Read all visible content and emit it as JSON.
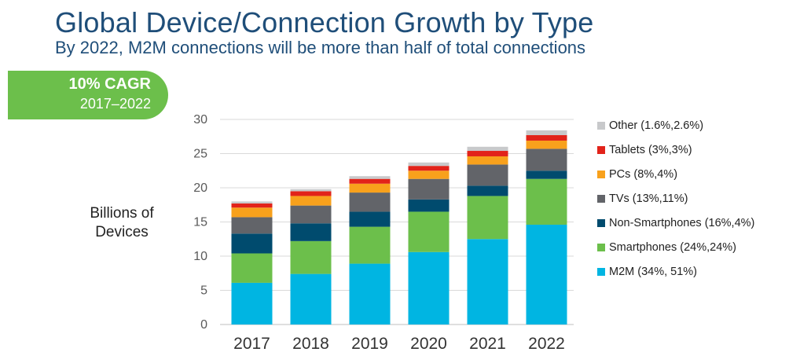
{
  "header": {
    "title": "Global Device/Connection Growth by Type",
    "subtitle": "By 2022, M2M connections will be more than half of total connections"
  },
  "badge": {
    "line1": "10% CAGR",
    "line2": "2017–2022",
    "color": "#6cbf4b"
  },
  "chart_data": {
    "type": "bar",
    "stacked": true,
    "title": "Global Device/Connection Growth by Type",
    "ylabel": "Billions of Devices",
    "xlabel": "",
    "ylim": [
      0,
      30
    ],
    "yticks": [
      0,
      5,
      10,
      15,
      20,
      25,
      30
    ],
    "grid": true,
    "legend_position": "right",
    "categories": [
      "2017",
      "2018",
      "2019",
      "2020",
      "2021",
      "2022"
    ],
    "series": [
      {
        "name": "M2M",
        "legend": "M2M (34%, 51%)",
        "color": "#00b5e2",
        "values": [
          6.1,
          7.4,
          8.9,
          10.6,
          12.5,
          14.6
        ]
      },
      {
        "name": "Smartphones",
        "legend": "Smartphones (24%,24%)",
        "color": "#6cbf4b",
        "values": [
          4.3,
          4.8,
          5.4,
          5.9,
          6.3,
          6.7
        ]
      },
      {
        "name": "Non-Smartphones",
        "legend": "Non-Smartphones (16%,4%)",
        "color": "#004b6e",
        "values": [
          2.9,
          2.6,
          2.2,
          1.8,
          1.5,
          1.2
        ]
      },
      {
        "name": "TVs",
        "legend": "TVs (13%,11%)",
        "color": "#626469",
        "values": [
          2.4,
          2.6,
          2.8,
          3.0,
          3.1,
          3.2
        ]
      },
      {
        "name": "PCs",
        "legend": "PCs (8%,4%)",
        "color": "#f8a11c",
        "values": [
          1.4,
          1.4,
          1.3,
          1.2,
          1.2,
          1.2
        ]
      },
      {
        "name": "Tablets",
        "legend": "Tablets (3%,3%)",
        "color": "#e2231a",
        "values": [
          0.6,
          0.7,
          0.7,
          0.7,
          0.8,
          0.8
        ]
      },
      {
        "name": "Other",
        "legend": "Other (1.6%,2.6%)",
        "color": "#c8c9cb",
        "values": [
          0.3,
          0.3,
          0.4,
          0.5,
          0.6,
          0.7
        ]
      }
    ]
  }
}
